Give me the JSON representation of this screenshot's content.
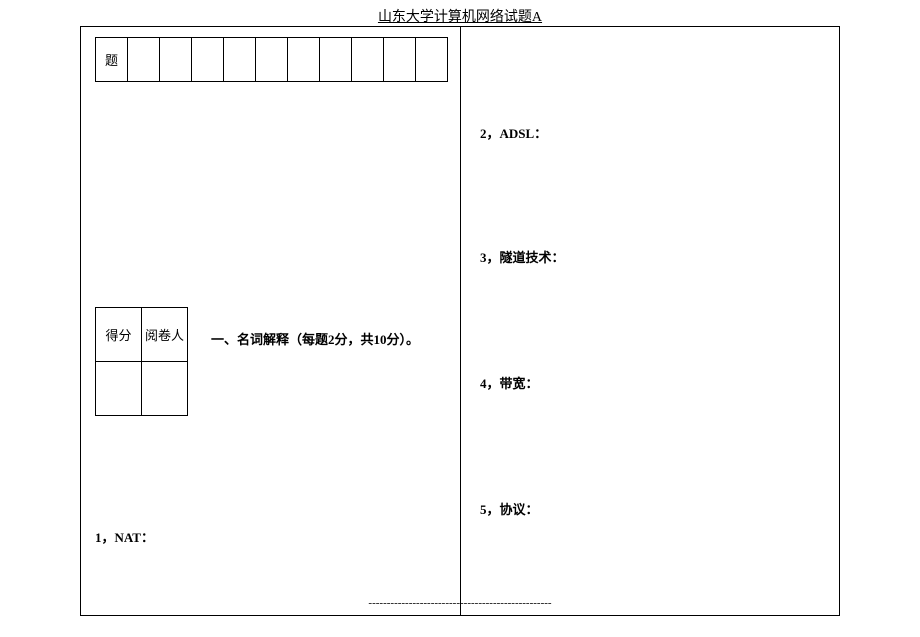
{
  "page": {
    "title": "山东大学计算机网络试题A"
  },
  "headerGrid": {
    "firstCell": "题",
    "columnCount": 11
  },
  "scoreGrid": {
    "cells": [
      "得分",
      "阅卷人",
      "",
      ""
    ]
  },
  "section": {
    "title": "一、名词解释（每题2分，共10分）。"
  },
  "questions": {
    "q1": "1，NAT：",
    "q2": "2，ADSL：",
    "q3": "3，隧道技术：",
    "q4": "4，带宽：",
    "q5": "5，协议："
  },
  "footer": {
    "dashes": "--------------------------------------------------"
  }
}
